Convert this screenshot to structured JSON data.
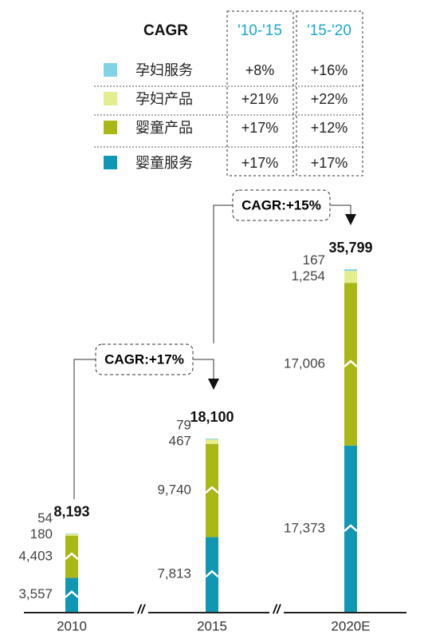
{
  "chart_data": {
    "type": "bar",
    "stacked": true,
    "table_header": [
      "CAGR",
      "'10-'15",
      "'15-'20"
    ],
    "categories": [
      "2010",
      "2015",
      "2020E"
    ],
    "series": [
      {
        "name": "婴童服务",
        "color": "#0f97b3",
        "values": [
          3557,
          7813,
          17373
        ],
        "value_labels": [
          "3,557",
          "7,813",
          "17,373"
        ],
        "cagr": [
          "+17%",
          "+17%"
        ]
      },
      {
        "name": "婴童产品",
        "color": "#a9b815",
        "values": [
          4403,
          9740,
          17006
        ],
        "value_labels": [
          "4,403",
          "9,740",
          "17,006"
        ],
        "cagr": [
          "+17%",
          "+12%"
        ]
      },
      {
        "name": "孕妇产品",
        "color": "#e4ee8c",
        "values": [
          180,
          467,
          1254
        ],
        "value_labels": [
          "180",
          "467",
          "1,254"
        ],
        "cagr": [
          "+21%",
          "+22%"
        ]
      },
      {
        "name": "孕妇服务",
        "color": "#80d3e4",
        "values": [
          54,
          79,
          167
        ],
        "cagr": [
          "+8%",
          "+16%"
        ]
      }
    ],
    "totals": [
      8193,
      18100,
      35799
    ],
    "total_labels": [
      "8,193",
      "18,100",
      "35,799"
    ],
    "annotations": [
      "CAGR:+17%",
      "CAGR:+15%"
    ]
  }
}
